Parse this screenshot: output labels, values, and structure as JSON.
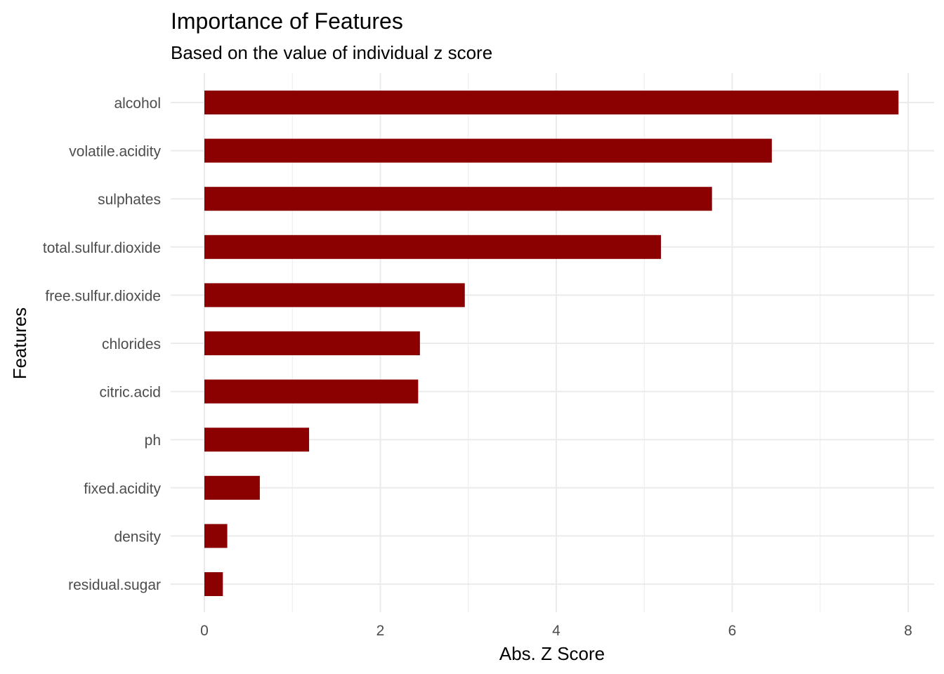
{
  "chart_data": {
    "type": "bar",
    "orientation": "horizontal",
    "title": "Importance of Features",
    "subtitle": "Based on the value of individual z score",
    "xlabel": "Abs. Z Score",
    "ylabel": "Features",
    "categories": [
      "alcohol",
      "volatile.acidity",
      "sulphates",
      "total.sulfur.dioxide",
      "free.sulfur.dioxide",
      "chlorides",
      "citric.acid",
      "ph",
      "fixed.acidity",
      "density",
      "residual.sugar"
    ],
    "values": [
      7.89,
      6.45,
      5.77,
      5.19,
      2.96,
      2.45,
      2.43,
      1.19,
      0.63,
      0.26,
      0.21
    ],
    "xlim": [
      0,
      8
    ],
    "xticks": [
      0,
      2,
      4,
      6,
      8
    ],
    "grid": true,
    "bar_color": "#8b0000",
    "legend": "none"
  }
}
